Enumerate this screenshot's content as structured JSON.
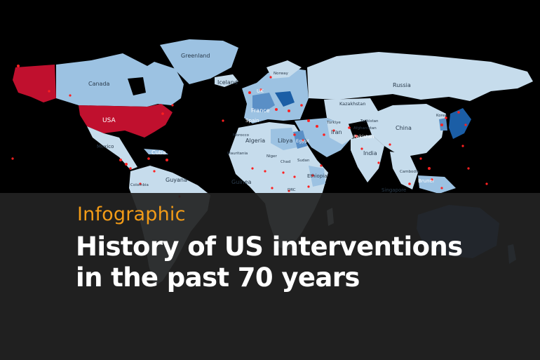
{
  "header": {
    "kicker": "Infographic",
    "title_line1": "History of US interventions",
    "title_line2": "in the past 70 years"
  },
  "map": {
    "labels": {
      "greenland": "Greenland",
      "canada": "Canada",
      "usa": "USA",
      "iceland": "Iceland",
      "norway": "Norway",
      "uk": "UK",
      "france": "France",
      "spain": "Spain",
      "morocco": "Morocco",
      "algeria": "Algeria",
      "libya": "Libya",
      "egypt": "Egypt",
      "mauritania": "Mauritania",
      "niger": "Niger",
      "chad": "Chad",
      "sudan": "Sudan",
      "guinea": "Guinea",
      "ethiopia": "Ethiopia",
      "drc": "DRC",
      "russia": "Russia",
      "kazakhstan": "Kazakhstan",
      "turkey": "Türkiye",
      "iran": "Iran",
      "tajikistan": "Tajikistan",
      "afghanistan": "Afghanistan",
      "pakistan": "Pakistan",
      "india": "India",
      "china": "China",
      "mexico": "Mexico",
      "cuba": "Cuba",
      "colombia": "Colombia",
      "guyana": "Guyana",
      "cambodia": "Cambodia",
      "singapore": "Singapore",
      "brunei": "Brunei",
      "korea": "Korea"
    },
    "colors": {
      "ocean": "#000000",
      "land_light": "#c6dcec",
      "land_mid": "#9cc2e2",
      "land_dark": "#5a8fc6",
      "land_deep": "#1b5ea6",
      "usa_red": "#c0102e",
      "marker_red": "#ff2020"
    }
  }
}
